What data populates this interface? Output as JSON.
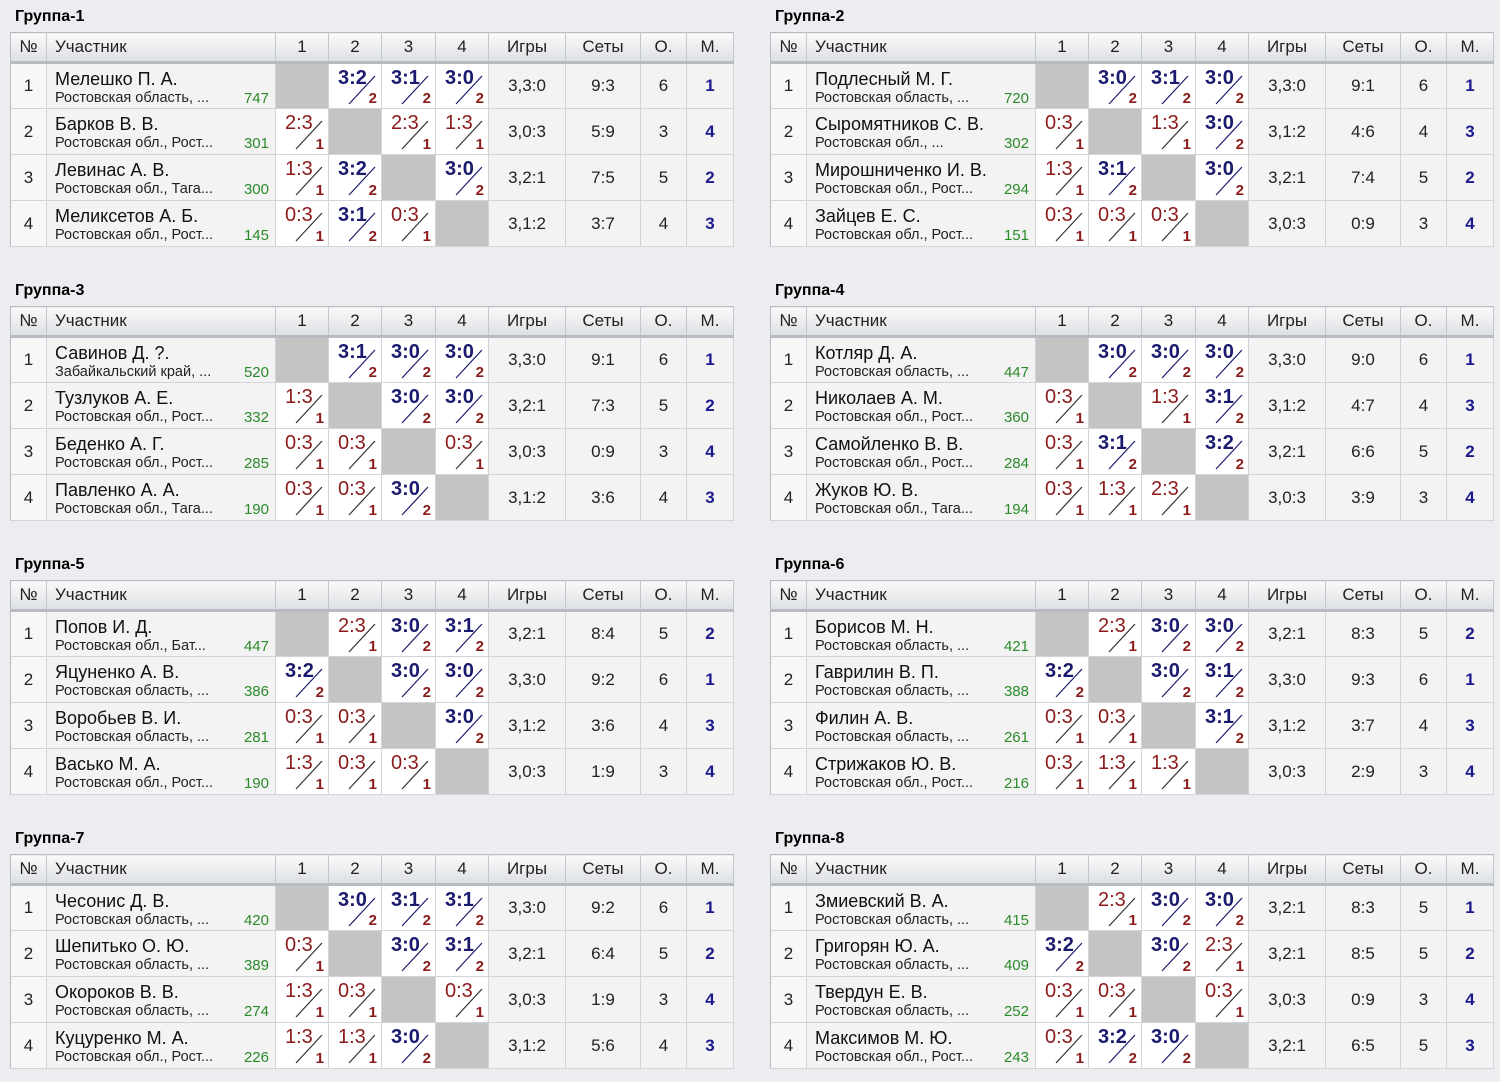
{
  "headers": {
    "num": "№",
    "name": "Участник",
    "c1": "1",
    "c2": "2",
    "c3": "3",
    "c4": "4",
    "games": "Игры",
    "sets": "Сеты",
    "points": "О.",
    "place": "М."
  },
  "colors": {
    "win": "#1a1a6e",
    "loss": "#8b1a1a",
    "rating": "#2a8a2a",
    "self_cell": "#c4c4c4"
  },
  "groups": [
    {
      "title": "Группа-1",
      "rows": [
        {
          "num": "1",
          "name": "Мелешко П. А.",
          "region": "Ростовская область, ...",
          "rating": "747",
          "res": [
            null,
            [
              "3:2",
              "2"
            ],
            [
              "3:1",
              "2"
            ],
            [
              "3:0",
              "2"
            ]
          ],
          "games": "3,3:0",
          "sets": "9:3",
          "points": "6",
          "place": "1"
        },
        {
          "num": "2",
          "name": "Барков В. В.",
          "region": "Ростовская обл., Рост...",
          "rating": "301",
          "res": [
            [
              "2:3",
              "1"
            ],
            null,
            [
              "2:3",
              "1"
            ],
            [
              "1:3",
              "1"
            ]
          ],
          "games": "3,0:3",
          "sets": "5:9",
          "points": "3",
          "place": "4"
        },
        {
          "num": "3",
          "name": "Левинас А. В.",
          "region": "Ростовская обл., Тага...",
          "rating": "300",
          "res": [
            [
              "1:3",
              "1"
            ],
            [
              "3:2",
              "2"
            ],
            null,
            [
              "3:0",
              "2"
            ]
          ],
          "games": "3,2:1",
          "sets": "7:5",
          "points": "5",
          "place": "2"
        },
        {
          "num": "4",
          "name": "Меликсетов А. Б.",
          "region": "Ростовская обл., Рост...",
          "rating": "145",
          "res": [
            [
              "0:3",
              "1"
            ],
            [
              "3:1",
              "2"
            ],
            [
              "0:3",
              "1"
            ],
            null
          ],
          "games": "3,1:2",
          "sets": "3:7",
          "points": "4",
          "place": "3"
        }
      ]
    },
    {
      "title": "Группа-2",
      "rows": [
        {
          "num": "1",
          "name": "Подлесный М. Г.",
          "region": "Ростовская область, ...",
          "rating": "720",
          "res": [
            null,
            [
              "3:0",
              "2"
            ],
            [
              "3:1",
              "2"
            ],
            [
              "3:0",
              "2"
            ]
          ],
          "games": "3,3:0",
          "sets": "9:1",
          "points": "6",
          "place": "1"
        },
        {
          "num": "2",
          "name": "Сыромятников С. В.",
          "region": "Ростовская обл., ...",
          "rating": "302",
          "res": [
            [
              "0:3",
              "1"
            ],
            null,
            [
              "1:3",
              "1"
            ],
            [
              "3:0",
              "2"
            ]
          ],
          "games": "3,1:2",
          "sets": "4:6",
          "points": "4",
          "place": "3"
        },
        {
          "num": "3",
          "name": "Мирошниченко И. В.",
          "region": "Ростовская обл., Рост...",
          "rating": "294",
          "res": [
            [
              "1:3",
              "1"
            ],
            [
              "3:1",
              "2"
            ],
            null,
            [
              "3:0",
              "2"
            ]
          ],
          "games": "3,2:1",
          "sets": "7:4",
          "points": "5",
          "place": "2"
        },
        {
          "num": "4",
          "name": "Зайцев Е. С.",
          "region": "Ростовская обл., Рост...",
          "rating": "151",
          "res": [
            [
              "0:3",
              "1"
            ],
            [
              "0:3",
              "1"
            ],
            [
              "0:3",
              "1"
            ],
            null
          ],
          "games": "3,0:3",
          "sets": "0:9",
          "points": "3",
          "place": "4"
        }
      ]
    },
    {
      "title": "Группа-3",
      "rows": [
        {
          "num": "1",
          "name": "Савинов Д. ?.",
          "region": "Забайкальский край, ...",
          "rating": "520",
          "res": [
            null,
            [
              "3:1",
              "2"
            ],
            [
              "3:0",
              "2"
            ],
            [
              "3:0",
              "2"
            ]
          ],
          "games": "3,3:0",
          "sets": "9:1",
          "points": "6",
          "place": "1"
        },
        {
          "num": "2",
          "name": "Тузлуков А. Е.",
          "region": "Ростовская обл., Рост...",
          "rating": "332",
          "res": [
            [
              "1:3",
              "1"
            ],
            null,
            [
              "3:0",
              "2"
            ],
            [
              "3:0",
              "2"
            ]
          ],
          "games": "3,2:1",
          "sets": "7:3",
          "points": "5",
          "place": "2"
        },
        {
          "num": "3",
          "name": "Беденко А. Г.",
          "region": "Ростовская обл., Рост...",
          "rating": "285",
          "res": [
            [
              "0:3",
              "1"
            ],
            [
              "0:3",
              "1"
            ],
            null,
            [
              "0:3",
              "1"
            ]
          ],
          "games": "3,0:3",
          "sets": "0:9",
          "points": "3",
          "place": "4"
        },
        {
          "num": "4",
          "name": "Павленко А. А.",
          "region": "Ростовская обл., Тага...",
          "rating": "190",
          "res": [
            [
              "0:3",
              "1"
            ],
            [
              "0:3",
              "1"
            ],
            [
              "3:0",
              "2"
            ],
            null
          ],
          "games": "3,1:2",
          "sets": "3:6",
          "points": "4",
          "place": "3"
        }
      ]
    },
    {
      "title": "Группа-4",
      "rows": [
        {
          "num": "1",
          "name": "Котляр Д. А.",
          "region": "Ростовская область, ...",
          "rating": "447",
          "res": [
            null,
            [
              "3:0",
              "2"
            ],
            [
              "3:0",
              "2"
            ],
            [
              "3:0",
              "2"
            ]
          ],
          "games": "3,3:0",
          "sets": "9:0",
          "points": "6",
          "place": "1"
        },
        {
          "num": "2",
          "name": "Николаев А. М.",
          "region": "Ростовская обл., Рост...",
          "rating": "360",
          "res": [
            [
              "0:3",
              "1"
            ],
            null,
            [
              "1:3",
              "1"
            ],
            [
              "3:1",
              "2"
            ]
          ],
          "games": "3,1:2",
          "sets": "4:7",
          "points": "4",
          "place": "3"
        },
        {
          "num": "3",
          "name": "Самойленко В. В.",
          "region": "Ростовская обл., Рост...",
          "rating": "284",
          "res": [
            [
              "0:3",
              "1"
            ],
            [
              "3:1",
              "2"
            ],
            null,
            [
              "3:2",
              "2"
            ]
          ],
          "games": "3,2:1",
          "sets": "6:6",
          "points": "5",
          "place": "2"
        },
        {
          "num": "4",
          "name": "Жуков Ю. В.",
          "region": "Ростовская обл., Тага...",
          "rating": "194",
          "res": [
            [
              "0:3",
              "1"
            ],
            [
              "1:3",
              "1"
            ],
            [
              "2:3",
              "1"
            ],
            null
          ],
          "games": "3,0:3",
          "sets": "3:9",
          "points": "3",
          "place": "4"
        }
      ]
    },
    {
      "title": "Группа-5",
      "rows": [
        {
          "num": "1",
          "name": "Попов И. Д.",
          "region": "Ростовская обл., Бат...",
          "rating": "447",
          "res": [
            null,
            [
              "2:3",
              "1"
            ],
            [
              "3:0",
              "2"
            ],
            [
              "3:1",
              "2"
            ]
          ],
          "games": "3,2:1",
          "sets": "8:4",
          "points": "5",
          "place": "2"
        },
        {
          "num": "2",
          "name": "Яцуненко А. В.",
          "region": "Ростовская область, ...",
          "rating": "386",
          "res": [
            [
              "3:2",
              "2"
            ],
            null,
            [
              "3:0",
              "2"
            ],
            [
              "3:0",
              "2"
            ]
          ],
          "games": "3,3:0",
          "sets": "9:2",
          "points": "6",
          "place": "1"
        },
        {
          "num": "3",
          "name": "Воробьев В. И.",
          "region": "Ростовская область, ...",
          "rating": "281",
          "res": [
            [
              "0:3",
              "1"
            ],
            [
              "0:3",
              "1"
            ],
            null,
            [
              "3:0",
              "2"
            ]
          ],
          "games": "3,1:2",
          "sets": "3:6",
          "points": "4",
          "place": "3"
        },
        {
          "num": "4",
          "name": "Васько М. А.",
          "region": "Ростовская обл., Рост...",
          "rating": "190",
          "res": [
            [
              "1:3",
              "1"
            ],
            [
              "0:3",
              "1"
            ],
            [
              "0:3",
              "1"
            ],
            null
          ],
          "games": "3,0:3",
          "sets": "1:9",
          "points": "3",
          "place": "4"
        }
      ]
    },
    {
      "title": "Группа-6",
      "rows": [
        {
          "num": "1",
          "name": "Борисов М. Н.",
          "region": "Ростовская область, ...",
          "rating": "421",
          "res": [
            null,
            [
              "2:3",
              "1"
            ],
            [
              "3:0",
              "2"
            ],
            [
              "3:0",
              "2"
            ]
          ],
          "games": "3,2:1",
          "sets": "8:3",
          "points": "5",
          "place": "2"
        },
        {
          "num": "2",
          "name": "Гаврилин В. П.",
          "region": "Ростовская область, ...",
          "rating": "388",
          "res": [
            [
              "3:2",
              "2"
            ],
            null,
            [
              "3:0",
              "2"
            ],
            [
              "3:1",
              "2"
            ]
          ],
          "games": "3,3:0",
          "sets": "9:3",
          "points": "6",
          "place": "1"
        },
        {
          "num": "3",
          "name": "Филин А. В.",
          "region": "Ростовская область, ...",
          "rating": "261",
          "res": [
            [
              "0:3",
              "1"
            ],
            [
              "0:3",
              "1"
            ],
            null,
            [
              "3:1",
              "2"
            ]
          ],
          "games": "3,1:2",
          "sets": "3:7",
          "points": "4",
          "place": "3"
        },
        {
          "num": "4",
          "name": "Стрижаков Ю. В.",
          "region": "Ростовская обл., Рост...",
          "rating": "216",
          "res": [
            [
              "0:3",
              "1"
            ],
            [
              "1:3",
              "1"
            ],
            [
              "1:3",
              "1"
            ],
            null
          ],
          "games": "3,0:3",
          "sets": "2:9",
          "points": "3",
          "place": "4"
        }
      ]
    },
    {
      "title": "Группа-7",
      "rows": [
        {
          "num": "1",
          "name": "Чесонис Д. В.",
          "region": "Ростовская область, ...",
          "rating": "420",
          "res": [
            null,
            [
              "3:0",
              "2"
            ],
            [
              "3:1",
              "2"
            ],
            [
              "3:1",
              "2"
            ]
          ],
          "games": "3,3:0",
          "sets": "9:2",
          "points": "6",
          "place": "1"
        },
        {
          "num": "2",
          "name": "Шепитько О. Ю.",
          "region": "Ростовская область, ...",
          "rating": "389",
          "res": [
            [
              "0:3",
              "1"
            ],
            null,
            [
              "3:0",
              "2"
            ],
            [
              "3:1",
              "2"
            ]
          ],
          "games": "3,2:1",
          "sets": "6:4",
          "points": "5",
          "place": "2"
        },
        {
          "num": "3",
          "name": "Окороков В. В.",
          "region": "Ростовская область, ...",
          "rating": "274",
          "res": [
            [
              "1:3",
              "1"
            ],
            [
              "0:3",
              "1"
            ],
            null,
            [
              "0:3",
              "1"
            ]
          ],
          "games": "3,0:3",
          "sets": "1:9",
          "points": "3",
          "place": "4"
        },
        {
          "num": "4",
          "name": "Куцуренко М. А.",
          "region": "Ростовская обл., Рост...",
          "rating": "226",
          "res": [
            [
              "1:3",
              "1"
            ],
            [
              "1:3",
              "1"
            ],
            [
              "3:0",
              "2"
            ],
            null
          ],
          "games": "3,1:2",
          "sets": "5:6",
          "points": "4",
          "place": "3"
        }
      ]
    },
    {
      "title": "Группа-8",
      "rows": [
        {
          "num": "1",
          "name": "Змиевский В. А.",
          "region": "Ростовская область, ...",
          "rating": "415",
          "res": [
            null,
            [
              "2:3",
              "1"
            ],
            [
              "3:0",
              "2"
            ],
            [
              "3:0",
              "2"
            ]
          ],
          "games": "3,2:1",
          "sets": "8:3",
          "points": "5",
          "place": "1"
        },
        {
          "num": "2",
          "name": "Григорян Ю. А.",
          "region": "Ростовская область, ...",
          "rating": "409",
          "res": [
            [
              "3:2",
              "2"
            ],
            null,
            [
              "3:0",
              "2"
            ],
            [
              "2:3",
              "1"
            ]
          ],
          "games": "3,2:1",
          "sets": "8:5",
          "points": "5",
          "place": "2"
        },
        {
          "num": "3",
          "name": "Твердун Е. В.",
          "region": "Ростовская область, ...",
          "rating": "252",
          "res": [
            [
              "0:3",
              "1"
            ],
            [
              "0:3",
              "1"
            ],
            null,
            [
              "0:3",
              "1"
            ]
          ],
          "games": "3,0:3",
          "sets": "0:9",
          "points": "3",
          "place": "4"
        },
        {
          "num": "4",
          "name": "Максимов М. Ю.",
          "region": "Ростовская обл., Рост...",
          "rating": "243",
          "res": [
            [
              "0:3",
              "1"
            ],
            [
              "3:2",
              "2"
            ],
            [
              "3:0",
              "2"
            ],
            null
          ],
          "games": "3,2:1",
          "sets": "6:5",
          "points": "5",
          "place": "3"
        }
      ]
    }
  ]
}
